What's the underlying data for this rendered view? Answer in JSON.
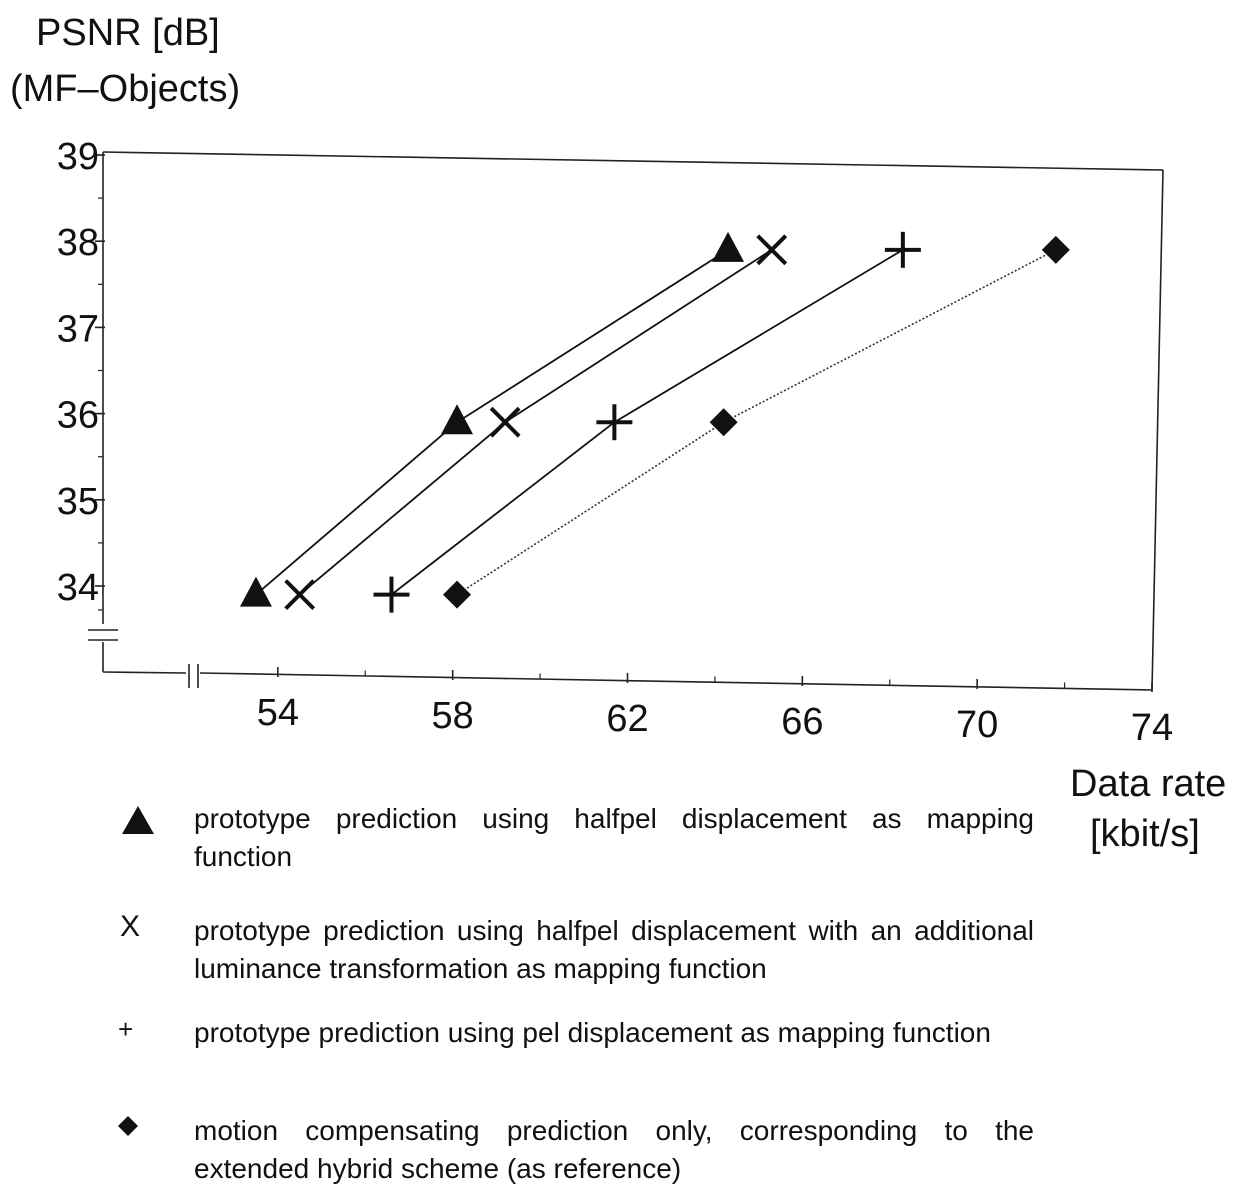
{
  "chart_data": {
    "type": "scatter",
    "ylabel_lines": [
      "PSNR [dB]",
      "(MF–Objects)"
    ],
    "xlabel_lines": [
      "Data rate",
      "[kbit/s]"
    ],
    "ylim": [
      32.1,
      39
    ],
    "yticks": [
      34,
      35,
      36,
      37,
      38,
      39
    ],
    "ytick_labels": [
      "34",
      "35",
      "36",
      "37",
      "38",
      "39"
    ],
    "xlim": [
      50,
      74
    ],
    "xticks": [
      54,
      58,
      62,
      66,
      70,
      74
    ],
    "xtick_labels": [
      "54",
      "58",
      "62",
      "66",
      "70",
      "74"
    ],
    "axis_break": true,
    "grid": false,
    "series": [
      {
        "marker": "triangle",
        "line": "solid",
        "color": "#111111",
        "x": [
          53.5,
          58.1,
          64.3
        ],
        "y": [
          33.9,
          35.9,
          37.9
        ],
        "description": "prototype prediction using halfpel displacement as mapping function"
      },
      {
        "marker": "x",
        "line": "solid",
        "color": "#111111",
        "x": [
          54.5,
          59.2,
          65.3
        ],
        "y": [
          33.9,
          35.9,
          37.9
        ],
        "description": "prototype prediction using halfpel displacement with an additional luminance transformation as mapping function"
      },
      {
        "marker": "plus",
        "line": "solid",
        "color": "#111111",
        "x": [
          56.6,
          61.7,
          68.3
        ],
        "y": [
          33.9,
          35.9,
          37.9
        ],
        "description": "prototype prediction using pel displacement as mapping function"
      },
      {
        "marker": "diamond",
        "line": "dotted",
        "color": "#333333",
        "x": [
          58.1,
          64.2,
          71.8
        ],
        "y": [
          33.9,
          35.9,
          37.9
        ],
        "description": "motion compensating prediction only, corresponding to the extended hybrid scheme (as reference)"
      }
    ]
  },
  "legend": {
    "marker_labels": [
      "",
      "X",
      "+",
      ""
    ]
  }
}
